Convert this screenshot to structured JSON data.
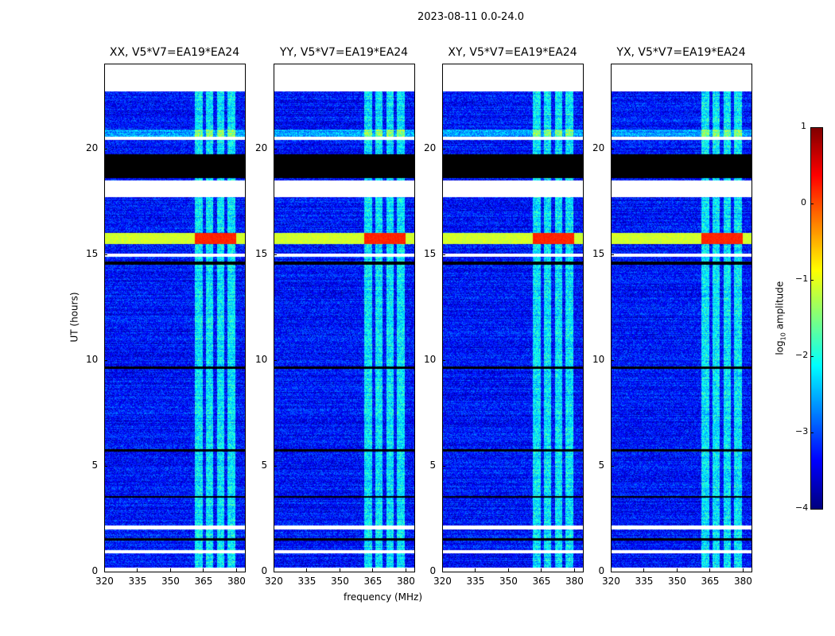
{
  "chart_data": {
    "type": "heatmap",
    "title": "2023-08-11 0.0-24.0",
    "xlabel": "frequency (MHz)",
    "ylabel": "UT (hours)",
    "xlim": [
      320,
      384
    ],
    "ylim": [
      0,
      24
    ],
    "xticks": [
      "320",
      "335",
      "350",
      "365",
      "380"
    ],
    "yticks": [
      "0",
      "5",
      "10",
      "15",
      "20"
    ],
    "panels": [
      {
        "title": "XX, V5*V7=EA19*EA24"
      },
      {
        "title": "YY, V5*V7=EA19*EA24"
      },
      {
        "title": "XY, V5*V7=EA19*EA24"
      },
      {
        "title": "YX, V5*V7=EA19*EA24"
      }
    ],
    "colorbar": {
      "label": "log10 amplitude",
      "label_main": "log",
      "label_sub": "10",
      "label_rest": " amplitude",
      "colormap": "jet",
      "range": [
        -4,
        1
      ],
      "ticks": [
        "1",
        "0",
        "−1",
        "−2",
        "−3",
        "−4"
      ]
    },
    "data_extent_hours": [
      0.2,
      22.7
    ],
    "background_level": -3.3,
    "rfi_band_mhz": [
      361,
      380
    ],
    "flagged_gaps_hours": [
      [
        0.9,
        1.05
      ],
      [
        2.0,
        2.2
      ],
      [
        17.7,
        18.5
      ],
      [
        22.7,
        24.0
      ],
      [
        14.9,
        15.05
      ],
      [
        20.4,
        20.55
      ]
    ],
    "zeroed_hours": [
      [
        18.6,
        19.75
      ],
      [
        14.5,
        14.65
      ],
      [
        9.6,
        9.7
      ],
      [
        5.7,
        5.8
      ],
      [
        3.5,
        3.6
      ],
      [
        1.5,
        1.6
      ]
    ],
    "strong_rfi_hours": [
      [
        15.5,
        16.0
      ]
    ]
  }
}
